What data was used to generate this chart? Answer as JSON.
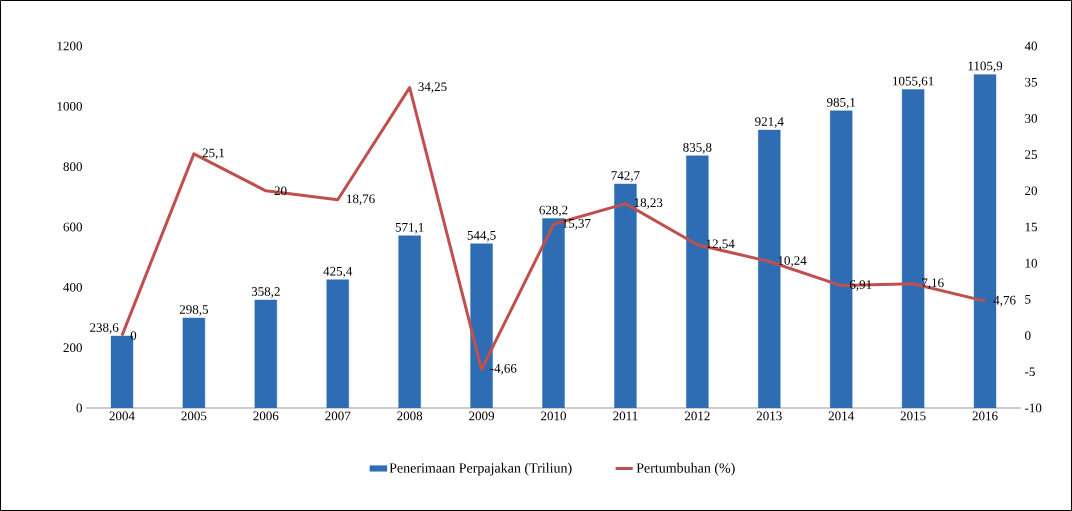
{
  "chart_data": {
    "type": "bar",
    "categories": [
      "2004",
      "2005",
      "2006",
      "2007",
      "2008",
      "2009",
      "2010",
      "2011",
      "2012",
      "2013",
      "2014",
      "2015",
      "2016"
    ],
    "series": [
      {
        "name": "Penerimaan Perpajakan (Triliun)",
        "color": "#2e6db4",
        "values": [
          238.6,
          298.5,
          358.2,
          425.4,
          571.1,
          544.5,
          628.2,
          742.7,
          835.8,
          921.4,
          985.1,
          1055.61,
          1105.9
        ],
        "value_labels": [
          "238,6",
          "298,5",
          "358,2",
          "425,4",
          "571,1",
          "544,5",
          "628,2",
          "742,7",
          "835,8",
          "921,4",
          "985,1",
          "1055,61",
          "1105,9"
        ]
      },
      {
        "name": "Pertumbuhan (%)",
        "type": "line",
        "axis": "y2",
        "color": "#c0504d",
        "values": [
          0,
          25.1,
          20,
          18.76,
          34.25,
          -4.66,
          15.37,
          18.23,
          12.54,
          10.24,
          6.91,
          7.16,
          4.76
        ],
        "value_labels": [
          "0",
          "25,1",
          "20",
          "18,76",
          "34,25",
          "-4,66",
          "15,37",
          "18,23",
          "12,54",
          "10,24",
          "6,91",
          "7,16",
          "4,76"
        ]
      }
    ],
    "ylim": [
      0,
      1200
    ],
    "yticks": [
      0,
      200,
      400,
      600,
      800,
      1000,
      1200
    ],
    "y2lim": [
      -10,
      40
    ],
    "y2ticks": [
      -10,
      -5,
      0,
      5,
      10,
      15,
      20,
      25,
      30,
      35,
      40
    ],
    "legend": "bottom",
    "marker": "none",
    "line_style": "solid"
  }
}
